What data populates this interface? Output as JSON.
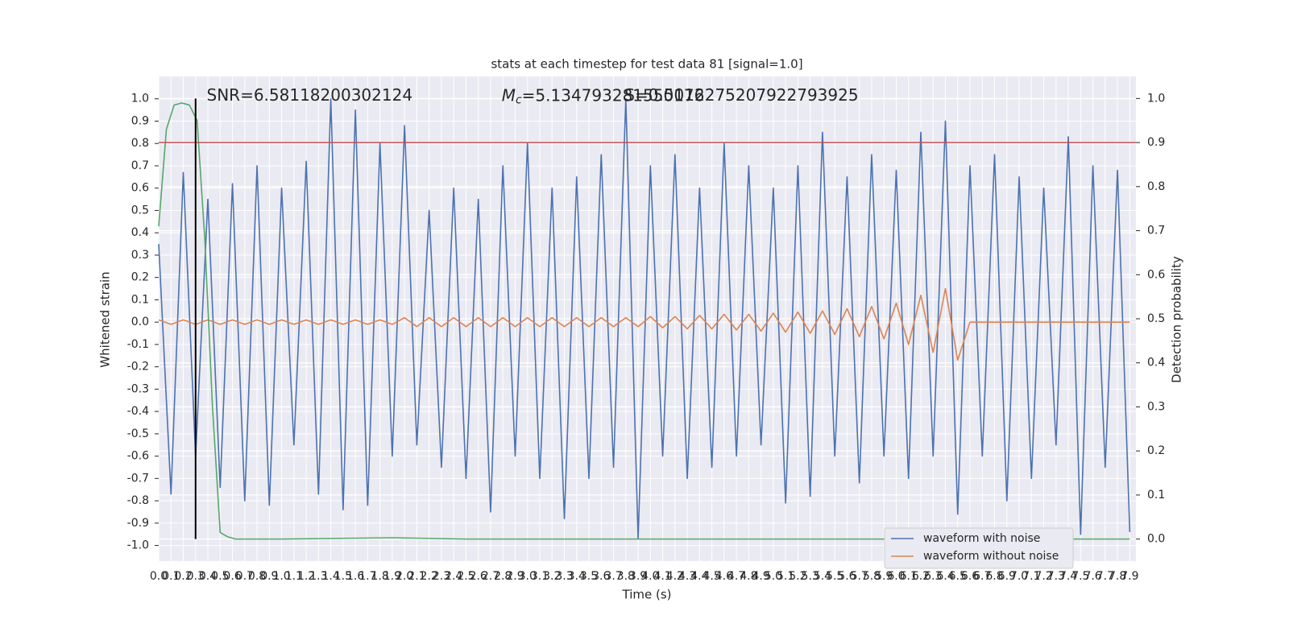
{
  "chart_data": {
    "type": "line",
    "title": "stats at each timestep for test data 81 [signal=1.0]",
    "xlabel": "Time (s)",
    "ylabel": "Whitened strain",
    "y2label": "Detection probability",
    "annotations": [
      {
        "text": "SNR=6.58118200302124",
        "x": 0.2,
        "y": 1.03
      },
      {
        "symbol": "M",
        "subscript": "c",
        "text": "=5.134793281550176",
        "x": 2.6,
        "y": 1.03
      },
      {
        "text": "S=0.5012275207922793925",
        "x": 3.6,
        "y": 1.03
      }
    ],
    "grid": true,
    "legend": "lower right",
    "xlim": [
      0,
      7.95
    ],
    "ylim": [
      -1.07,
      1.1
    ],
    "y2lim": [
      -0.05,
      1.05
    ],
    "xticks": [
      {
        "value": 0,
        "label": "0.0"
      },
      0.1,
      0.2,
      0.3,
      0.4,
      0.5,
      0.6,
      0.7,
      0.8,
      0.9,
      {
        "value": 1,
        "label": "1.0"
      },
      1.1,
      1.2,
      1.3,
      1.4,
      1.5,
      1.6,
      1.7,
      1.8,
      1.9,
      {
        "value": 2,
        "label": "2.0"
      },
      2.1,
      2.2,
      2.3,
      2.4,
      2.5,
      2.6,
      2.7,
      2.8,
      2.9,
      {
        "value": 3,
        "label": "3.0"
      },
      3.1,
      3.2,
      3.3,
      3.4,
      3.5,
      3.6,
      3.7,
      3.8,
      3.9,
      {
        "value": 4,
        "label": "4.0"
      },
      4.1,
      4.2,
      4.3,
      4.4,
      4.5,
      4.6,
      4.7,
      4.8,
      4.9,
      {
        "value": 5,
        "label": "5.0"
      },
      5.1,
      5.2,
      5.3,
      5.4,
      5.5,
      5.6,
      5.7,
      5.8,
      5.9,
      {
        "value": 6,
        "label": "6.0"
      },
      6.1,
      6.2,
      6.3,
      6.4,
      6.5,
      6.6,
      6.7,
      6.8,
      6.9,
      {
        "value": 7,
        "label": "7.0"
      },
      7.1,
      7.2,
      7.3,
      7.4,
      7.5,
      7.6,
      7.7,
      7.8,
      7.9
    ],
    "yticks": [
      {
        "value": -1,
        "label": "-1.0"
      },
      -0.9,
      -0.8,
      -0.7,
      -0.6,
      -0.5,
      -0.4,
      -0.3,
      -0.2,
      -0.1,
      {
        "value": 0,
        "label": "0.0"
      },
      0.1,
      0.2,
      0.3,
      0.4,
      0.5,
      0.6,
      0.7,
      0.8,
      0.9,
      {
        "value": 1,
        "label": "1.0"
      }
    ],
    "y2ticks": [
      {
        "value": 0,
        "label": "0.0"
      },
      0.1,
      0.2,
      0.3,
      0.4,
      0.5,
      0.6,
      0.7,
      0.8,
      0.9,
      {
        "value": 1,
        "label": "1.0"
      }
    ],
    "x": [
      0,
      0.1,
      0.2,
      0.3,
      0.4,
      0.5,
      0.6,
      0.7,
      0.8,
      0.9,
      1,
      1.1,
      1.2,
      1.3,
      1.4,
      1.5,
      1.6,
      1.7,
      1.8,
      1.9,
      2,
      2.1,
      2.2,
      2.3,
      2.4,
      2.5,
      2.6,
      2.7,
      2.8,
      2.9,
      3,
      3.1,
      3.2,
      3.3,
      3.4,
      3.5,
      3.6,
      3.7,
      3.8,
      3.9,
      4,
      4.1,
      4.2,
      4.3,
      4.4,
      4.5,
      4.6,
      4.7,
      4.8,
      4.9,
      5,
      5.1,
      5.2,
      5.3,
      5.4,
      5.5,
      5.6,
      5.7,
      5.8,
      5.9,
      6,
      6.1,
      6.2,
      6.3,
      6.4,
      6.5,
      6.6,
      6.7,
      6.8,
      6.9,
      7,
      7.1,
      7.2,
      7.3,
      7.4,
      7.5,
      7.6,
      7.7,
      7.8,
      7.9
    ],
    "series": [
      {
        "name": "waveform with noise",
        "color": "#4c72b0",
        "values": [
          0.35,
          -0.77,
          0.67,
          -0.6,
          0.55,
          -0.74,
          0.62,
          -0.8,
          0.7,
          -0.82,
          0.6,
          -0.55,
          0.72,
          -0.77,
          1.0,
          -0.84,
          0.95,
          -0.82,
          0.8,
          -0.6,
          0.88,
          -0.55,
          0.5,
          -0.65,
          0.6,
          -0.7,
          0.55,
          -0.85,
          0.7,
          -0.6,
          0.8,
          -0.7,
          0.6,
          -0.88,
          0.65,
          -0.7,
          0.75,
          -0.65,
          1.0,
          -0.97,
          0.7,
          -0.6,
          0.75,
          -0.7,
          0.6,
          -0.65,
          0.8,
          -0.6,
          0.7,
          -0.55,
          0.6,
          -0.81,
          0.7,
          -0.78,
          0.85,
          -0.6,
          0.65,
          -0.72,
          0.75,
          -0.6,
          0.68,
          -0.7,
          0.85,
          -0.6,
          0.9,
          -0.86,
          0.7,
          -0.6,
          0.75,
          -0.8,
          0.65,
          -0.7,
          0.6,
          -0.55,
          0.83,
          -0.95,
          0.7,
          -0.65,
          0.68,
          -0.94
        ]
      },
      {
        "name": "waveform without noise",
        "color": "#dd8452",
        "values": [
          0.01,
          -0.01,
          0.01,
          -0.01,
          0.01,
          -0.01,
          0.01,
          -0.01,
          0.01,
          -0.01,
          0.01,
          -0.01,
          0.01,
          -0.01,
          0.01,
          -0.01,
          0.01,
          -0.01,
          0.01,
          -0.01,
          0.02,
          -0.02,
          0.02,
          -0.02,
          0.02,
          -0.02,
          0.02,
          -0.02,
          0.02,
          -0.02,
          0.02,
          -0.02,
          0.02,
          -0.02,
          0.02,
          -0.02,
          0.02,
          -0.02,
          0.02,
          -0.02,
          0.025,
          -0.025,
          0.025,
          -0.03,
          0.03,
          -0.03,
          0.035,
          -0.035,
          0.035,
          -0.04,
          0.04,
          -0.045,
          0.045,
          -0.05,
          0.05,
          -0.055,
          0.06,
          -0.065,
          0.07,
          -0.075,
          0.085,
          -0.1,
          0.12,
          -0.135,
          0.15,
          -0.17,
          0,
          0,
          0,
          0,
          0,
          0,
          0,
          0,
          0,
          0,
          0,
          0,
          0,
          0
        ]
      },
      {
        "color": "#55a868",
        "axis": "y2",
        "x": [
          0,
          0.0625,
          0.125,
          0.1875,
          0.25,
          0.3125,
          0.375,
          0.4375,
          0.5,
          0.5625,
          0.625,
          1,
          1.9,
          2.5,
          7.9
        ],
        "values": [
          0.71,
          0.93,
          0.985,
          0.99,
          0.985,
          0.95,
          0.68,
          0.3,
          0.015,
          0.005,
          0,
          0,
          0.003,
          0,
          0
        ]
      }
    ],
    "hlines": [
      {
        "value": 0.9,
        "axis": "y2",
        "color": "#c44e52"
      }
    ],
    "vlines": [
      {
        "value": 0.3,
        "color": "#000000"
      }
    ]
  }
}
